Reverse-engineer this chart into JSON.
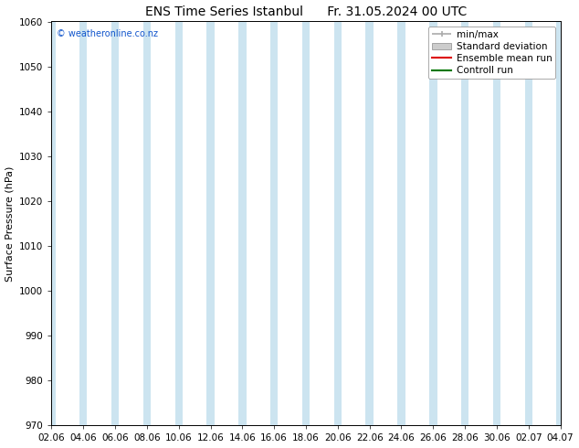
{
  "title_left": "ENS Time Series Istanbul",
  "title_right": "Fr. 31.05.2024 00 UTC",
  "ylabel": "Surface Pressure (hPa)",
  "ylim": [
    970,
    1060
  ],
  "yticks": [
    970,
    980,
    990,
    1000,
    1010,
    1020,
    1030,
    1040,
    1050,
    1060
  ],
  "xtick_labels": [
    "02.06",
    "04.06",
    "06.06",
    "08.06",
    "10.06",
    "12.06",
    "14.06",
    "16.06",
    "18.06",
    "20.06",
    "22.06",
    "24.06",
    "26.06",
    "28.06",
    "30.06",
    "02.07",
    "04.07"
  ],
  "bg_color": "#ffffff",
  "plot_bg_color": "#ffffff",
  "band_color": "#cce4f0",
  "watermark": "© weatheronline.co.nz",
  "watermark_color": "#1155cc",
  "legend_labels": [
    "min/max",
    "Standard deviation",
    "Ensemble mean run",
    "Controll run"
  ],
  "legend_line_color": "#aaaaaa",
  "legend_std_color": "#cccccc",
  "legend_ens_color": "#dd0000",
  "legend_ctrl_color": "#007700",
  "title_fontsize": 10,
  "axis_fontsize": 8,
  "tick_fontsize": 7.5,
  "legend_fontsize": 7.5
}
